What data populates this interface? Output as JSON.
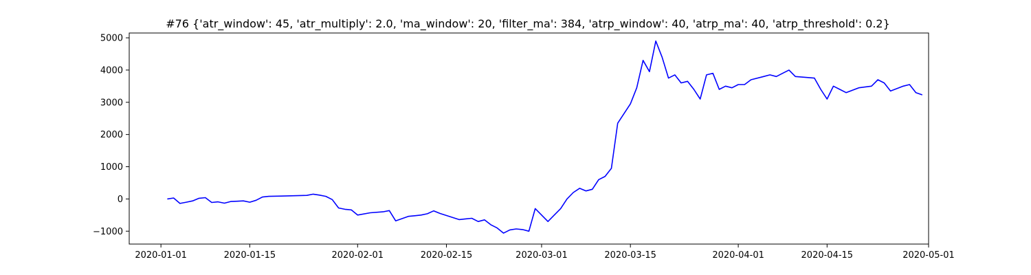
{
  "chart_data": {
    "type": "line",
    "title": "#76 {'atr_window': 45, 'atr_multiply': 2.0, 'ma_window': 20, 'filter_ma': 384, 'atrp_window': 40, 'atrp_ma': 40, 'atrp_threshold': 0.2}",
    "xlabel": "",
    "ylabel": "",
    "grid": false,
    "legend": "none",
    "xlim": [
      "2019-12-27",
      "2020-05-01"
    ],
    "ylim": [
      -1400,
      5150
    ],
    "x_ticks": [
      "2020-01-01",
      "2020-01-15",
      "2020-02-01",
      "2020-02-15",
      "2020-03-01",
      "2020-03-15",
      "2020-04-01",
      "2020-04-15",
      "2020-05-01"
    ],
    "y_ticks": [
      -1000,
      0,
      1000,
      2000,
      3000,
      4000,
      5000
    ],
    "line_color": "#0000ff",
    "series": [
      {
        "x": [
          "2020-01-02",
          "2020-01-03",
          "2020-01-04",
          "2020-01-05",
          "2020-01-06",
          "2020-01-07",
          "2020-01-08",
          "2020-01-09",
          "2020-01-10",
          "2020-01-11",
          "2020-01-12",
          "2020-01-13",
          "2020-01-14",
          "2020-01-15",
          "2020-01-16",
          "2020-01-17",
          "2020-01-18",
          "2020-01-20",
          "2020-01-22",
          "2020-01-24",
          "2020-01-25",
          "2020-01-26",
          "2020-01-27",
          "2020-01-28",
          "2020-01-29",
          "2020-01-30",
          "2020-01-31",
          "2020-02-01",
          "2020-02-03",
          "2020-02-05",
          "2020-02-06",
          "2020-02-07",
          "2020-02-09",
          "2020-02-10",
          "2020-02-11",
          "2020-02-12",
          "2020-02-13",
          "2020-02-14",
          "2020-02-17",
          "2020-02-18",
          "2020-02-19",
          "2020-02-20",
          "2020-02-21",
          "2020-02-22",
          "2020-02-23",
          "2020-02-24",
          "2020-02-25",
          "2020-02-26",
          "2020-02-27",
          "2020-02-28",
          "2020-02-29",
          "2020-03-02",
          "2020-03-03",
          "2020-03-04",
          "2020-03-05",
          "2020-03-06",
          "2020-03-07",
          "2020-03-08",
          "2020-03-09",
          "2020-03-10",
          "2020-03-11",
          "2020-03-12",
          "2020-03-13",
          "2020-03-15",
          "2020-03-16",
          "2020-03-17",
          "2020-03-18",
          "2020-03-19",
          "2020-03-20",
          "2020-03-21",
          "2020-03-22",
          "2020-03-23",
          "2020-03-24",
          "2020-03-25",
          "2020-03-26",
          "2020-03-27",
          "2020-03-28",
          "2020-03-29",
          "2020-03-30",
          "2020-03-31",
          "2020-04-01",
          "2020-04-02",
          "2020-04-03",
          "2020-04-05",
          "2020-04-06",
          "2020-04-07",
          "2020-04-08",
          "2020-04-09",
          "2020-04-10",
          "2020-04-13",
          "2020-04-14",
          "2020-04-15",
          "2020-04-16",
          "2020-04-17",
          "2020-04-18",
          "2020-04-20",
          "2020-04-22",
          "2020-04-23",
          "2020-04-24",
          "2020-04-25",
          "2020-04-27",
          "2020-04-28",
          "2020-04-29",
          "2020-04-30"
        ],
        "values": [
          0,
          30,
          -140,
          -100,
          -60,
          20,
          40,
          -110,
          -90,
          -130,
          -80,
          -70,
          -60,
          -100,
          -40,
          60,
          80,
          90,
          100,
          110,
          150,
          120,
          80,
          -20,
          -280,
          -320,
          -340,
          -500,
          -430,
          -400,
          -360,
          -680,
          -540,
          -520,
          -500,
          -460,
          -370,
          -450,
          -640,
          -620,
          -600,
          -700,
          -650,
          -800,
          -900,
          -1060,
          -960,
          -930,
          -950,
          -1000,
          -300,
          -700,
          -500,
          -300,
          0,
          200,
          330,
          250,
          300,
          600,
          700,
          950,
          2350,
          2950,
          3450,
          4300,
          3950,
          4900,
          4400,
          3750,
          3850,
          3600,
          3650,
          3400,
          3100,
          3850,
          3900,
          3400,
          3500,
          3450,
          3550,
          3550,
          3700,
          3800,
          3850,
          3800,
          3900,
          4000,
          3800,
          3750,
          3400,
          3100,
          3500,
          3400,
          3300,
          3450,
          3500,
          3700,
          3600,
          3350,
          3500,
          3550,
          3300,
          3230
        ]
      }
    ]
  }
}
